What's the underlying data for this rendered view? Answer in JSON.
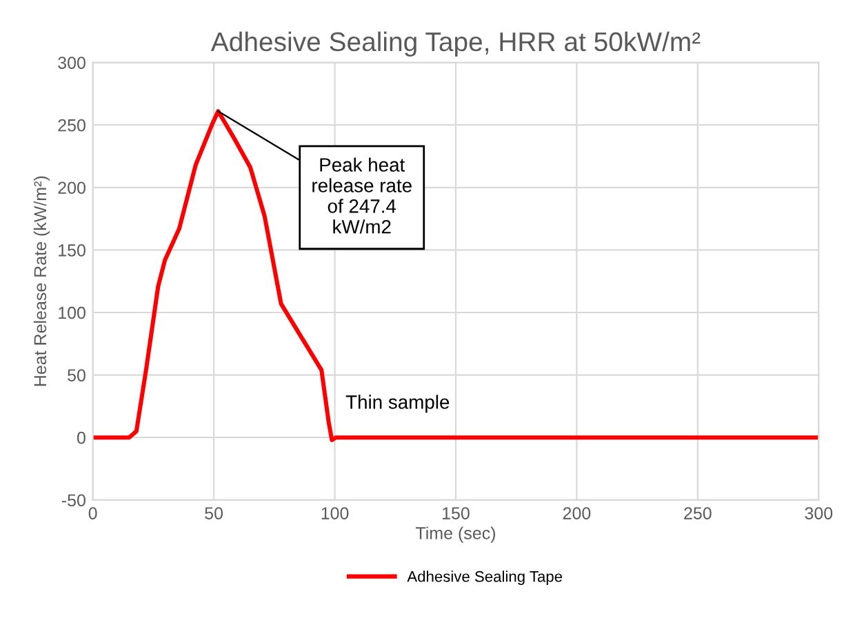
{
  "chart_data": {
    "type": "line",
    "title": "Adhesive Sealing Tape, HRR at 50kW/m²",
    "xlabel": "Time (sec)",
    "ylabel": "Heat Release Rate (kW/m²)",
    "series": [
      {
        "name": "Adhesive Sealing Tape",
        "color": "#ff0000",
        "x": [
          0,
          15,
          18,
          22,
          27,
          29.8,
          35.7,
          42.5,
          49.4,
          51.8,
          58.2,
          65.1,
          71,
          77.8,
          86.6,
          94.5,
          97.5,
          98.8,
          100.5,
          300
        ],
        "values": [
          0,
          0,
          5,
          54,
          121,
          142,
          167,
          218,
          251,
          261,
          240,
          216,
          177,
          107,
          79,
          54,
          12,
          -2,
          0,
          0
        ]
      }
    ],
    "xlim": [
      0,
      300
    ],
    "xticks": [
      0,
      50,
      100,
      150,
      200,
      250,
      300
    ],
    "ylim": [
      -50,
      300
    ],
    "yticks": [
      -50,
      0,
      50,
      100,
      150,
      200,
      250,
      300
    ],
    "grid": true,
    "legend": "bottom",
    "marker": "none",
    "line_style": "solid",
    "annotations": [
      {
        "text": "Peak heat\nrelease rate\nof 247.4\nkW/m2",
        "x": 51.8,
        "y": 261
      },
      "Thin sample"
    ]
  }
}
